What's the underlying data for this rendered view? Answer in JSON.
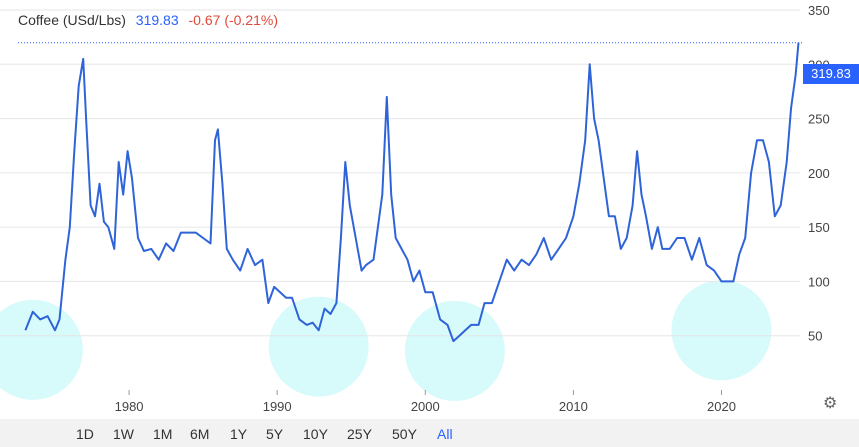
{
  "header": {
    "title": "Coffee (USd/Lbs)",
    "price": "319.83",
    "change": "-0.67 (-0.21%)"
  },
  "price_badge": "319.83",
  "timeframes": [
    "1D",
    "1W",
    "1M",
    "6M",
    "1Y",
    "5Y",
    "10Y",
    "25Y",
    "50Y",
    "All"
  ],
  "active_timeframe": "All",
  "colors": {
    "line": "#2f64d9",
    "highlight": "#bdf7f9",
    "badge": "#2962ff",
    "grid": "#e6e6e6"
  },
  "icons": {
    "settings": "gear-icon"
  },
  "chart_data": {
    "type": "line",
    "x_range": [
      1972.5,
      2025.3
    ],
    "y_range": [
      0,
      350
    ],
    "xticks": [
      1980,
      1990,
      2000,
      2010,
      2020
    ],
    "xtick_labels": [
      "1980",
      "1990",
      "2000",
      "2010",
      "2020"
    ],
    "yticks": [
      50,
      100,
      150,
      200,
      250,
      300,
      350
    ],
    "ytick_labels": [
      "50",
      "100",
      "150",
      "200",
      "250",
      "300",
      "350"
    ],
    "grid": "horizontal",
    "current_price_line": 319.83,
    "highlights": [
      {
        "x": 1973.5,
        "y": 37
      },
      {
        "x": 1992.8,
        "y": 40
      },
      {
        "x": 2002.0,
        "y": 36
      },
      {
        "x": 2020.0,
        "y": 55
      }
    ],
    "series": [
      {
        "x": [
          1973.0,
          1973.5,
          1974.0,
          1974.5,
          1975.0,
          1975.3,
          1975.7,
          1976.0,
          1976.3,
          1976.6,
          1976.9,
          1977.1,
          1977.4,
          1977.7,
          1978.0,
          1978.3,
          1978.6,
          1979.0,
          1979.3,
          1979.6,
          1979.9,
          1980.2,
          1980.6,
          1981.0,
          1981.5,
          1982.0,
          1982.5,
          1983.0,
          1983.5,
          1984.0,
          1984.5,
          1985.0,
          1985.5,
          1985.8,
          1986.0,
          1986.3,
          1986.6,
          1987.0,
          1987.5,
          1988.0,
          1988.5,
          1989.0,
          1989.4,
          1989.8,
          1990.2,
          1990.6,
          1991.0,
          1991.5,
          1992.0,
          1992.4,
          1992.8,
          1993.2,
          1993.6,
          1994.0,
          1994.3,
          1994.6,
          1994.9,
          1995.3,
          1995.7,
          1996.0,
          1996.5,
          1996.8,
          1997.1,
          1997.4,
          1997.7,
          1998.0,
          1998.4,
          1998.8,
          1999.2,
          1999.6,
          2000.0,
          2000.5,
          2001.0,
          2001.5,
          2001.9,
          2002.3,
          2002.7,
          2003.1,
          2003.6,
          2004.0,
          2004.5,
          2005.0,
          2005.5,
          2006.0,
          2006.5,
          2007.0,
          2007.5,
          2008.0,
          2008.5,
          2009.0,
          2009.5,
          2010.0,
          2010.4,
          2010.8,
          2011.1,
          2011.4,
          2011.7,
          2012.0,
          2012.4,
          2012.8,
          2013.2,
          2013.6,
          2014.0,
          2014.3,
          2014.6,
          2014.9,
          2015.3,
          2015.7,
          2016.0,
          2016.5,
          2017.0,
          2017.5,
          2018.0,
          2018.5,
          2019.0,
          2019.5,
          2020.0,
          2020.4,
          2020.8,
          2021.2,
          2021.6,
          2022.0,
          2022.4,
          2022.8,
          2023.2,
          2023.6,
          2024.0,
          2024.4,
          2024.7,
          2025.0,
          2025.2
        ],
        "y": [
          55,
          72,
          65,
          68,
          55,
          65,
          120,
          150,
          220,
          280,
          305,
          250,
          170,
          160,
          190,
          155,
          150,
          130,
          210,
          180,
          220,
          195,
          140,
          128,
          130,
          120,
          135,
          128,
          145,
          145,
          145,
          140,
          135,
          230,
          240,
          190,
          130,
          120,
          110,
          130,
          115,
          120,
          80,
          95,
          90,
          85,
          85,
          65,
          60,
          62,
          55,
          75,
          70,
          80,
          140,
          210,
          170,
          140,
          110,
          115,
          120,
          150,
          180,
          270,
          180,
          140,
          130,
          120,
          100,
          110,
          90,
          90,
          65,
          60,
          45,
          50,
          55,
          60,
          60,
          80,
          80,
          100,
          120,
          110,
          120,
          115,
          125,
          140,
          120,
          130,
          140,
          160,
          190,
          230,
          300,
          250,
          230,
          200,
          160,
          160,
          130,
          140,
          170,
          220,
          180,
          160,
          130,
          150,
          130,
          130,
          140,
          140,
          120,
          140,
          115,
          110,
          100,
          100,
          100,
          125,
          140,
          200,
          230,
          230,
          210,
          160,
          170,
          210,
          260,
          290,
          320
        ]
      }
    ]
  }
}
